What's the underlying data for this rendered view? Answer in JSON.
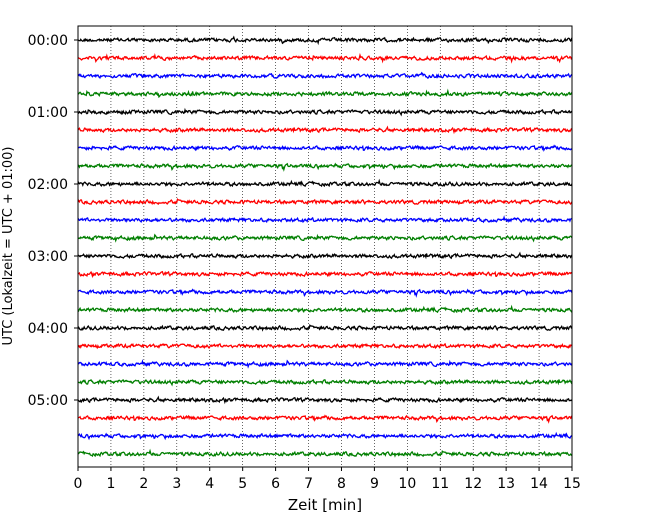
{
  "chart_data": {
    "type": "line",
    "subtype": "helicorder",
    "xlabel": "Zeit  [min]",
    "ylabel": "UTC (Lokalzeit = UTC + 01:00)",
    "xlim": [
      0,
      15
    ],
    "x_ticks": [
      0,
      1,
      2,
      3,
      4,
      5,
      6,
      7,
      8,
      9,
      10,
      11,
      12,
      13,
      14,
      15
    ],
    "x_grid": true,
    "y_tick_labels": [
      "00:00",
      "01:00",
      "02:00",
      "03:00",
      "04:00",
      "05:00"
    ],
    "trace_interval_min": 15,
    "trace_count": 24,
    "trace_colors": [
      "#000000",
      "#ff0000",
      "#0000ff",
      "#007f00"
    ],
    "traces": [
      {
        "start": "00:00"
      },
      {
        "start": "00:15"
      },
      {
        "start": "00:30"
      },
      {
        "start": "00:45"
      },
      {
        "start": "01:00"
      },
      {
        "start": "01:15"
      },
      {
        "start": "01:30"
      },
      {
        "start": "01:45"
      },
      {
        "start": "02:00"
      },
      {
        "start": "02:15"
      },
      {
        "start": "02:30"
      },
      {
        "start": "02:45"
      },
      {
        "start": "03:00"
      },
      {
        "start": "03:15"
      },
      {
        "start": "03:30"
      },
      {
        "start": "03:45"
      },
      {
        "start": "04:00"
      },
      {
        "start": "04:15"
      },
      {
        "start": "04:30"
      },
      {
        "start": "04:45"
      },
      {
        "start": "05:00"
      },
      {
        "start": "05:15"
      },
      {
        "start": "05:30"
      },
      {
        "start": "05:45"
      }
    ]
  }
}
